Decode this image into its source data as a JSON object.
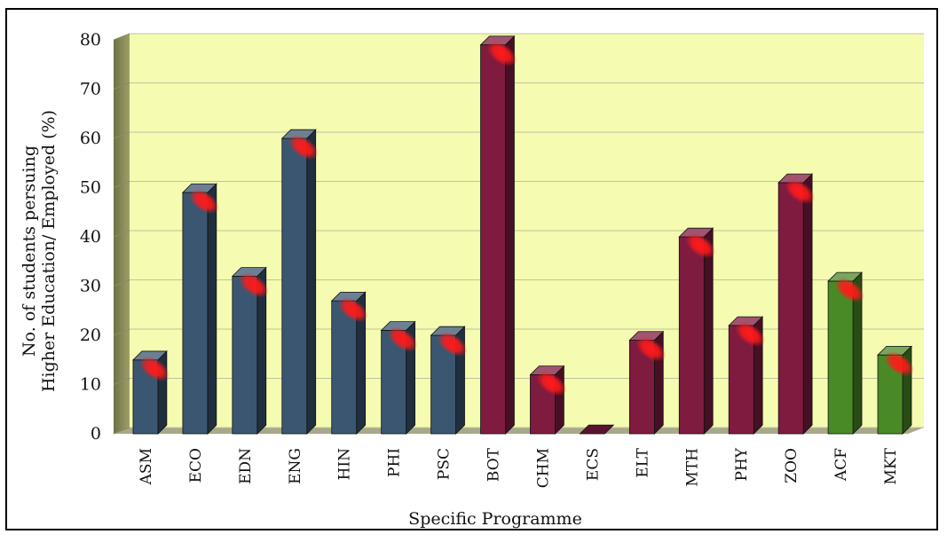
{
  "chart_data": {
    "type": "bar",
    "title": "",
    "xlabel": "Specific Programme",
    "ylabel_lines": [
      "No. of students persuing",
      "Higher Education/ Employed (%)"
    ],
    "ylim": [
      0,
      80
    ],
    "yticks": [
      0,
      10,
      20,
      30,
      40,
      50,
      60,
      70,
      80
    ],
    "grid": true,
    "categories": [
      "ASM",
      "ECO",
      "EDN",
      "ENG",
      "HIN",
      "PHI",
      "PSC",
      "BOT",
      "CHM",
      "ECS",
      "ELT",
      "MTH",
      "PHY",
      "ZOO",
      "ACF",
      "MKT"
    ],
    "values": [
      15,
      49,
      32,
      60,
      27,
      21,
      20,
      79,
      12,
      0,
      19,
      40,
      22,
      51,
      31,
      16
    ],
    "bar_colors": [
      "#3b5670",
      "#3b5670",
      "#3b5670",
      "#3b5670",
      "#3b5670",
      "#3b5670",
      "#3b5670",
      "#801b40",
      "#801b40",
      "#801b40",
      "#801b40",
      "#801b40",
      "#801b40",
      "#801b40",
      "#4a8a26",
      "#4a8a26"
    ],
    "plot_background": "#f5fbb0",
    "highlight_color": "#ff1a1a"
  }
}
